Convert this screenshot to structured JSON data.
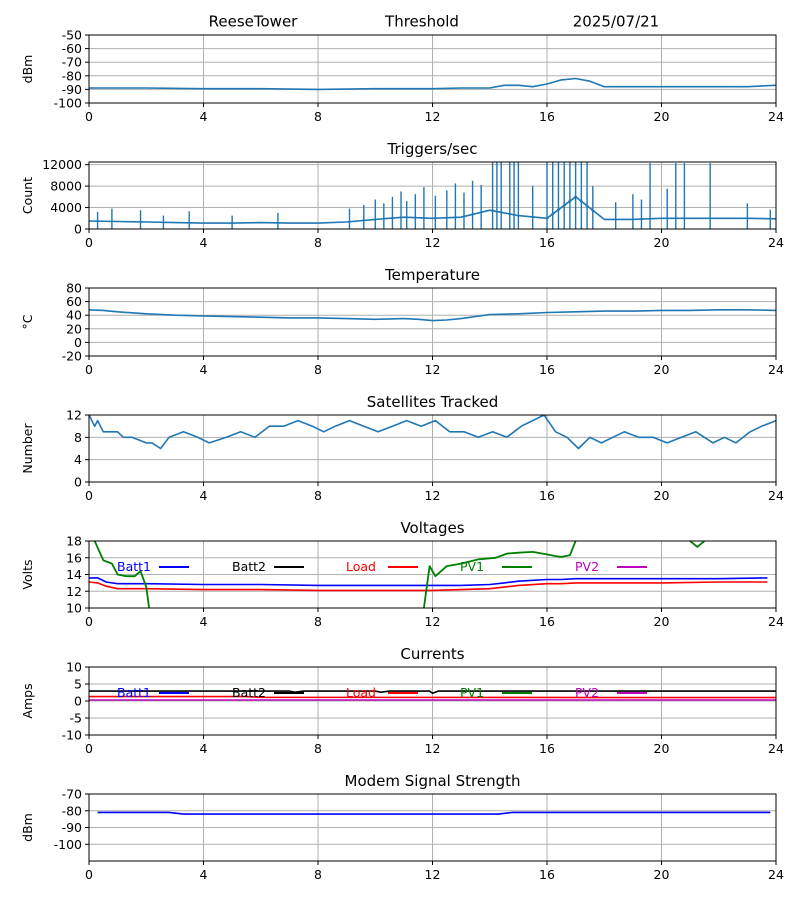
{
  "header": {
    "station": "ReeseTower",
    "subtitle": "Threshold",
    "date": "2025/07/21"
  },
  "colors": {
    "series_default": "#1f77b4",
    "batt1": "#0000ff",
    "batt2": "#000000",
    "load": "#ff0000",
    "pv1": "#008000",
    "pv2": "#bf00bf",
    "grid": "#b0b0b0"
  },
  "chart_data": [
    {
      "id": "threshold",
      "type": "line",
      "title": "",
      "ylabel": "dBm",
      "xlim": [
        0,
        24
      ],
      "ylim": [
        -100,
        -50
      ],
      "xticks": [
        "0",
        "4",
        "8",
        "12",
        "16",
        "20",
        "24"
      ],
      "yticks": [
        "-100",
        "-90",
        "-80",
        "-70",
        "-60",
        "-50"
      ],
      "series": [
        {
          "color_key": "series_default",
          "x": [
            0,
            2,
            4,
            6,
            8,
            10,
            12,
            13,
            14,
            14.5,
            15,
            15.5,
            16,
            16.5,
            17,
            17.5,
            18,
            19,
            20,
            21,
            22,
            23,
            24
          ],
          "y": [
            -89,
            -89,
            -89.5,
            -89.5,
            -90,
            -89.5,
            -89.5,
            -89,
            -89,
            -87,
            -87,
            -88,
            -86,
            -83,
            -82,
            -84,
            -88,
            -88,
            -88,
            -88,
            -88,
            -88,
            -87
          ]
        }
      ]
    },
    {
      "id": "triggers",
      "type": "line",
      "title": "Triggers/sec",
      "ylabel": "Count",
      "xlim": [
        0,
        24
      ],
      "ylim": [
        0,
        12500
      ],
      "xticks": [
        "0",
        "4",
        "8",
        "12",
        "16",
        "20",
        "24"
      ],
      "yticks": [
        "0",
        "4000",
        "8000",
        "12000"
      ],
      "series": [
        {
          "color_key": "series_default",
          "x": [
            0,
            1,
            2,
            3,
            4,
            5,
            6,
            7,
            8,
            9,
            10,
            11,
            12,
            13,
            14,
            15,
            16,
            17,
            18,
            19,
            20,
            21,
            22,
            23,
            24
          ],
          "y": [
            1500,
            1400,
            1300,
            1200,
            1100,
            1100,
            1200,
            1100,
            1100,
            1300,
            1800,
            2200,
            2000,
            2200,
            3500,
            2500,
            2000,
            6000,
            1800,
            1800,
            2000,
            2000,
            2000,
            2000,
            1900
          ]
        }
      ],
      "spikes": {
        "x": [
          0.3,
          0.8,
          1.8,
          2.6,
          3.5,
          5.0,
          6.6,
          9.1,
          9.6,
          10.0,
          10.3,
          10.6,
          10.9,
          11.1,
          11.4,
          11.7,
          12.1,
          12.5,
          12.8,
          13.1,
          13.4,
          13.7,
          14.1,
          14.25,
          14.4,
          14.7,
          14.85,
          15.0,
          15.5,
          16.0,
          16.2,
          16.4,
          16.6,
          16.8,
          17.0,
          17.2,
          17.4,
          17.6,
          18.4,
          19.0,
          19.3,
          19.6,
          20.2,
          20.5,
          20.8,
          21.7,
          23.0,
          23.8
        ],
        "y": [
          3200,
          3800,
          3500,
          2500,
          3300,
          2500,
          3000,
          3800,
          4500,
          5500,
          4800,
          6000,
          7000,
          5200,
          6500,
          7800,
          6200,
          7200,
          8500,
          6800,
          9000,
          8200,
          12500,
          12500,
          12500,
          12500,
          12500,
          12500,
          8000,
          12500,
          12500,
          12500,
          12500,
          12500,
          12500,
          12500,
          12500,
          8000,
          5000,
          6500,
          5500,
          12300,
          7500,
          12300,
          12300,
          12300,
          4800,
          3600
        ]
      }
    },
    {
      "id": "temperature",
      "type": "line",
      "title": "Temperature",
      "ylabel": "°C",
      "xlim": [
        0,
        24
      ],
      "ylim": [
        -20,
        80
      ],
      "xticks": [
        "0",
        "4",
        "8",
        "12",
        "16",
        "20",
        "24"
      ],
      "yticks": [
        "-20",
        "0",
        "20",
        "40",
        "60",
        "80"
      ],
      "series": [
        {
          "color_key": "series_default",
          "x": [
            0,
            0.5,
            1,
            2,
            3,
            4,
            5,
            6,
            7,
            8,
            9,
            10,
            11,
            11.5,
            12,
            12.5,
            13,
            14,
            15,
            16,
            17,
            18,
            19,
            20,
            21,
            22,
            23,
            24
          ],
          "y": [
            48,
            47,
            45,
            42,
            40,
            39,
            38,
            37,
            36,
            36,
            35,
            34,
            35,
            34,
            32,
            33,
            35,
            41,
            42,
            44,
            45,
            46,
            46,
            47,
            47,
            48,
            48,
            47
          ]
        }
      ]
    },
    {
      "id": "satellites",
      "type": "line",
      "title": "Satellites Tracked",
      "ylabel": "Number",
      "xlim": [
        0,
        24
      ],
      "ylim": [
        0,
        12
      ],
      "xticks": [
        "0",
        "4",
        "8",
        "12",
        "16",
        "20",
        "24"
      ],
      "yticks": [
        "0",
        "4",
        "8",
        "12"
      ],
      "series": [
        {
          "color_key": "series_default",
          "x": [
            0,
            0.2,
            0.3,
            0.5,
            1,
            1.2,
            1.5,
            2,
            2.2,
            2.5,
            2.8,
            3.3,
            3.8,
            4.2,
            4.8,
            5.3,
            5.8,
            6.3,
            6.8,
            7.3,
            7.8,
            8.2,
            8.6,
            9.1,
            9.6,
            10.1,
            10.6,
            11.1,
            11.6,
            12.1,
            12.6,
            13.1,
            13.6,
            14.1,
            14.6,
            15.1,
            15.5,
            15.9,
            16.3,
            16.7,
            17.1,
            17.5,
            17.9,
            18.3,
            18.7,
            19.2,
            19.7,
            20.2,
            20.7,
            21.2,
            21.5,
            21.8,
            22.2,
            22.6,
            23.1,
            23.5,
            24
          ],
          "y": [
            12,
            10,
            11,
            9,
            9,
            8,
            8,
            7,
            7,
            6,
            8,
            9,
            8,
            7,
            8,
            9,
            8,
            10,
            10,
            11,
            10,
            9,
            10,
            11,
            10,
            9,
            10,
            11,
            10,
            11,
            9,
            9,
            8,
            9,
            8,
            10,
            11,
            12,
            9,
            8,
            6,
            8,
            7,
            8,
            9,
            8,
            8,
            7,
            8,
            9,
            8,
            7,
            8,
            7,
            9,
            10,
            11
          ]
        }
      ]
    },
    {
      "id": "voltages",
      "type": "line",
      "title": "Voltages",
      "ylabel": "Volts",
      "xlim": [
        0,
        24
      ],
      "ylim": [
        10,
        18
      ],
      "xticks": [
        "0",
        "4",
        "8",
        "12",
        "16",
        "20",
        "24"
      ],
      "yticks": [
        "10",
        "12",
        "14",
        "16",
        "18"
      ],
      "legend": [
        "Batt1",
        "Batt2",
        "Load",
        "PV1",
        "PV2"
      ],
      "series": [
        {
          "name": "Batt1",
          "color_key": "batt1",
          "x": [
            0,
            0.3,
            0.6,
            1,
            2,
            4,
            6,
            8,
            10,
            12,
            13,
            14,
            14.5,
            15,
            16,
            16.5,
            17,
            18,
            20,
            22,
            23.7
          ],
          "y": [
            13.6,
            13.6,
            13.1,
            12.9,
            12.9,
            12.8,
            12.8,
            12.7,
            12.7,
            12.7,
            12.7,
            12.8,
            13.0,
            13.2,
            13.4,
            13.4,
            13.5,
            13.5,
            13.5,
            13.5,
            13.6
          ]
        },
        {
          "name": "Load",
          "color_key": "load",
          "x": [
            0,
            0.3,
            0.6,
            1,
            2,
            4,
            6,
            8,
            10,
            12,
            13,
            14,
            14.5,
            15,
            16,
            16.5,
            17,
            18,
            20,
            22,
            23.7
          ],
          "y": [
            13.1,
            13.0,
            12.6,
            12.3,
            12.3,
            12.2,
            12.2,
            12.1,
            12.1,
            12.1,
            12.2,
            12.3,
            12.5,
            12.7,
            12.9,
            12.9,
            13.0,
            13.0,
            13.0,
            13.1,
            13.1
          ]
        },
        {
          "name": "PV1",
          "color_key": "pv1",
          "segments": [
            {
              "x": [
                0.2,
                0.5,
                0.8,
                1,
                1.3,
                1.6,
                1.8,
                2.0,
                2.1
              ],
              "y": [
                18,
                15.7,
                15.3,
                14.0,
                13.8,
                13.8,
                14.4,
                12.5,
                10
              ]
            },
            {
              "x": [
                11.7,
                11.9,
                12.1,
                12.5,
                13,
                13.6,
                14.2,
                14.6,
                15,
                15.5,
                16,
                16.3,
                16.5,
                16.8,
                17.0
              ],
              "y": [
                10,
                15,
                13.8,
                15.0,
                15.3,
                15.8,
                16.0,
                16.5,
                16.6,
                16.7,
                16.4,
                16.2,
                16.1,
                16.3,
                18
              ]
            },
            {
              "x": [
                21.0,
                21.25,
                21.5
              ],
              "y": [
                18,
                17.3,
                18
              ]
            }
          ]
        }
      ]
    },
    {
      "id": "currents",
      "type": "line",
      "title": "Currents",
      "ylabel": "Amps",
      "xlim": [
        0,
        24
      ],
      "ylim": [
        -10,
        10
      ],
      "xticks": [
        "0",
        "4",
        "8",
        "12",
        "16",
        "20",
        "24"
      ],
      "yticks": [
        "-10",
        "-5",
        "0",
        "5",
        "10"
      ],
      "legend": [
        "Batt1",
        "Batt2",
        "Load",
        "PV1",
        "PV2"
      ],
      "series": [
        {
          "name": "Batt2",
          "color_key": "batt2",
          "x": [
            0,
            7,
            7.2,
            7.5,
            10,
            10.2,
            10.5,
            11.9,
            12.0,
            12.2,
            24
          ],
          "y": [
            2.9,
            2.9,
            2.6,
            2.9,
            2.9,
            2.6,
            2.9,
            2.9,
            2.3,
            2.9,
            2.9
          ]
        },
        {
          "name": "Load",
          "color_key": "load",
          "x": [
            0,
            5.5,
            6,
            24
          ],
          "y": [
            1.3,
            1.3,
            1.1,
            1.0
          ]
        },
        {
          "name": "PV2",
          "color_key": "pv2",
          "x": [
            0,
            24
          ],
          "y": [
            0.3,
            0.3
          ]
        }
      ]
    },
    {
      "id": "modem",
      "type": "line",
      "title": "Modem Signal Strength",
      "ylabel": "dBm",
      "xlim": [
        0,
        24
      ],
      "ylim": [
        -110,
        -70
      ],
      "xticks": [
        "0",
        "4",
        "8",
        "12",
        "16",
        "20",
        "24"
      ],
      "yticks": [
        "-100",
        "-90",
        "-80",
        "-70"
      ],
      "series": [
        {
          "color_key": "batt1",
          "x": [
            0.3,
            2.8,
            3.3,
            14.3,
            14.8,
            23.8
          ],
          "y": [
            -81,
            -81,
            -82,
            -82,
            -81,
            -81
          ]
        }
      ]
    }
  ]
}
